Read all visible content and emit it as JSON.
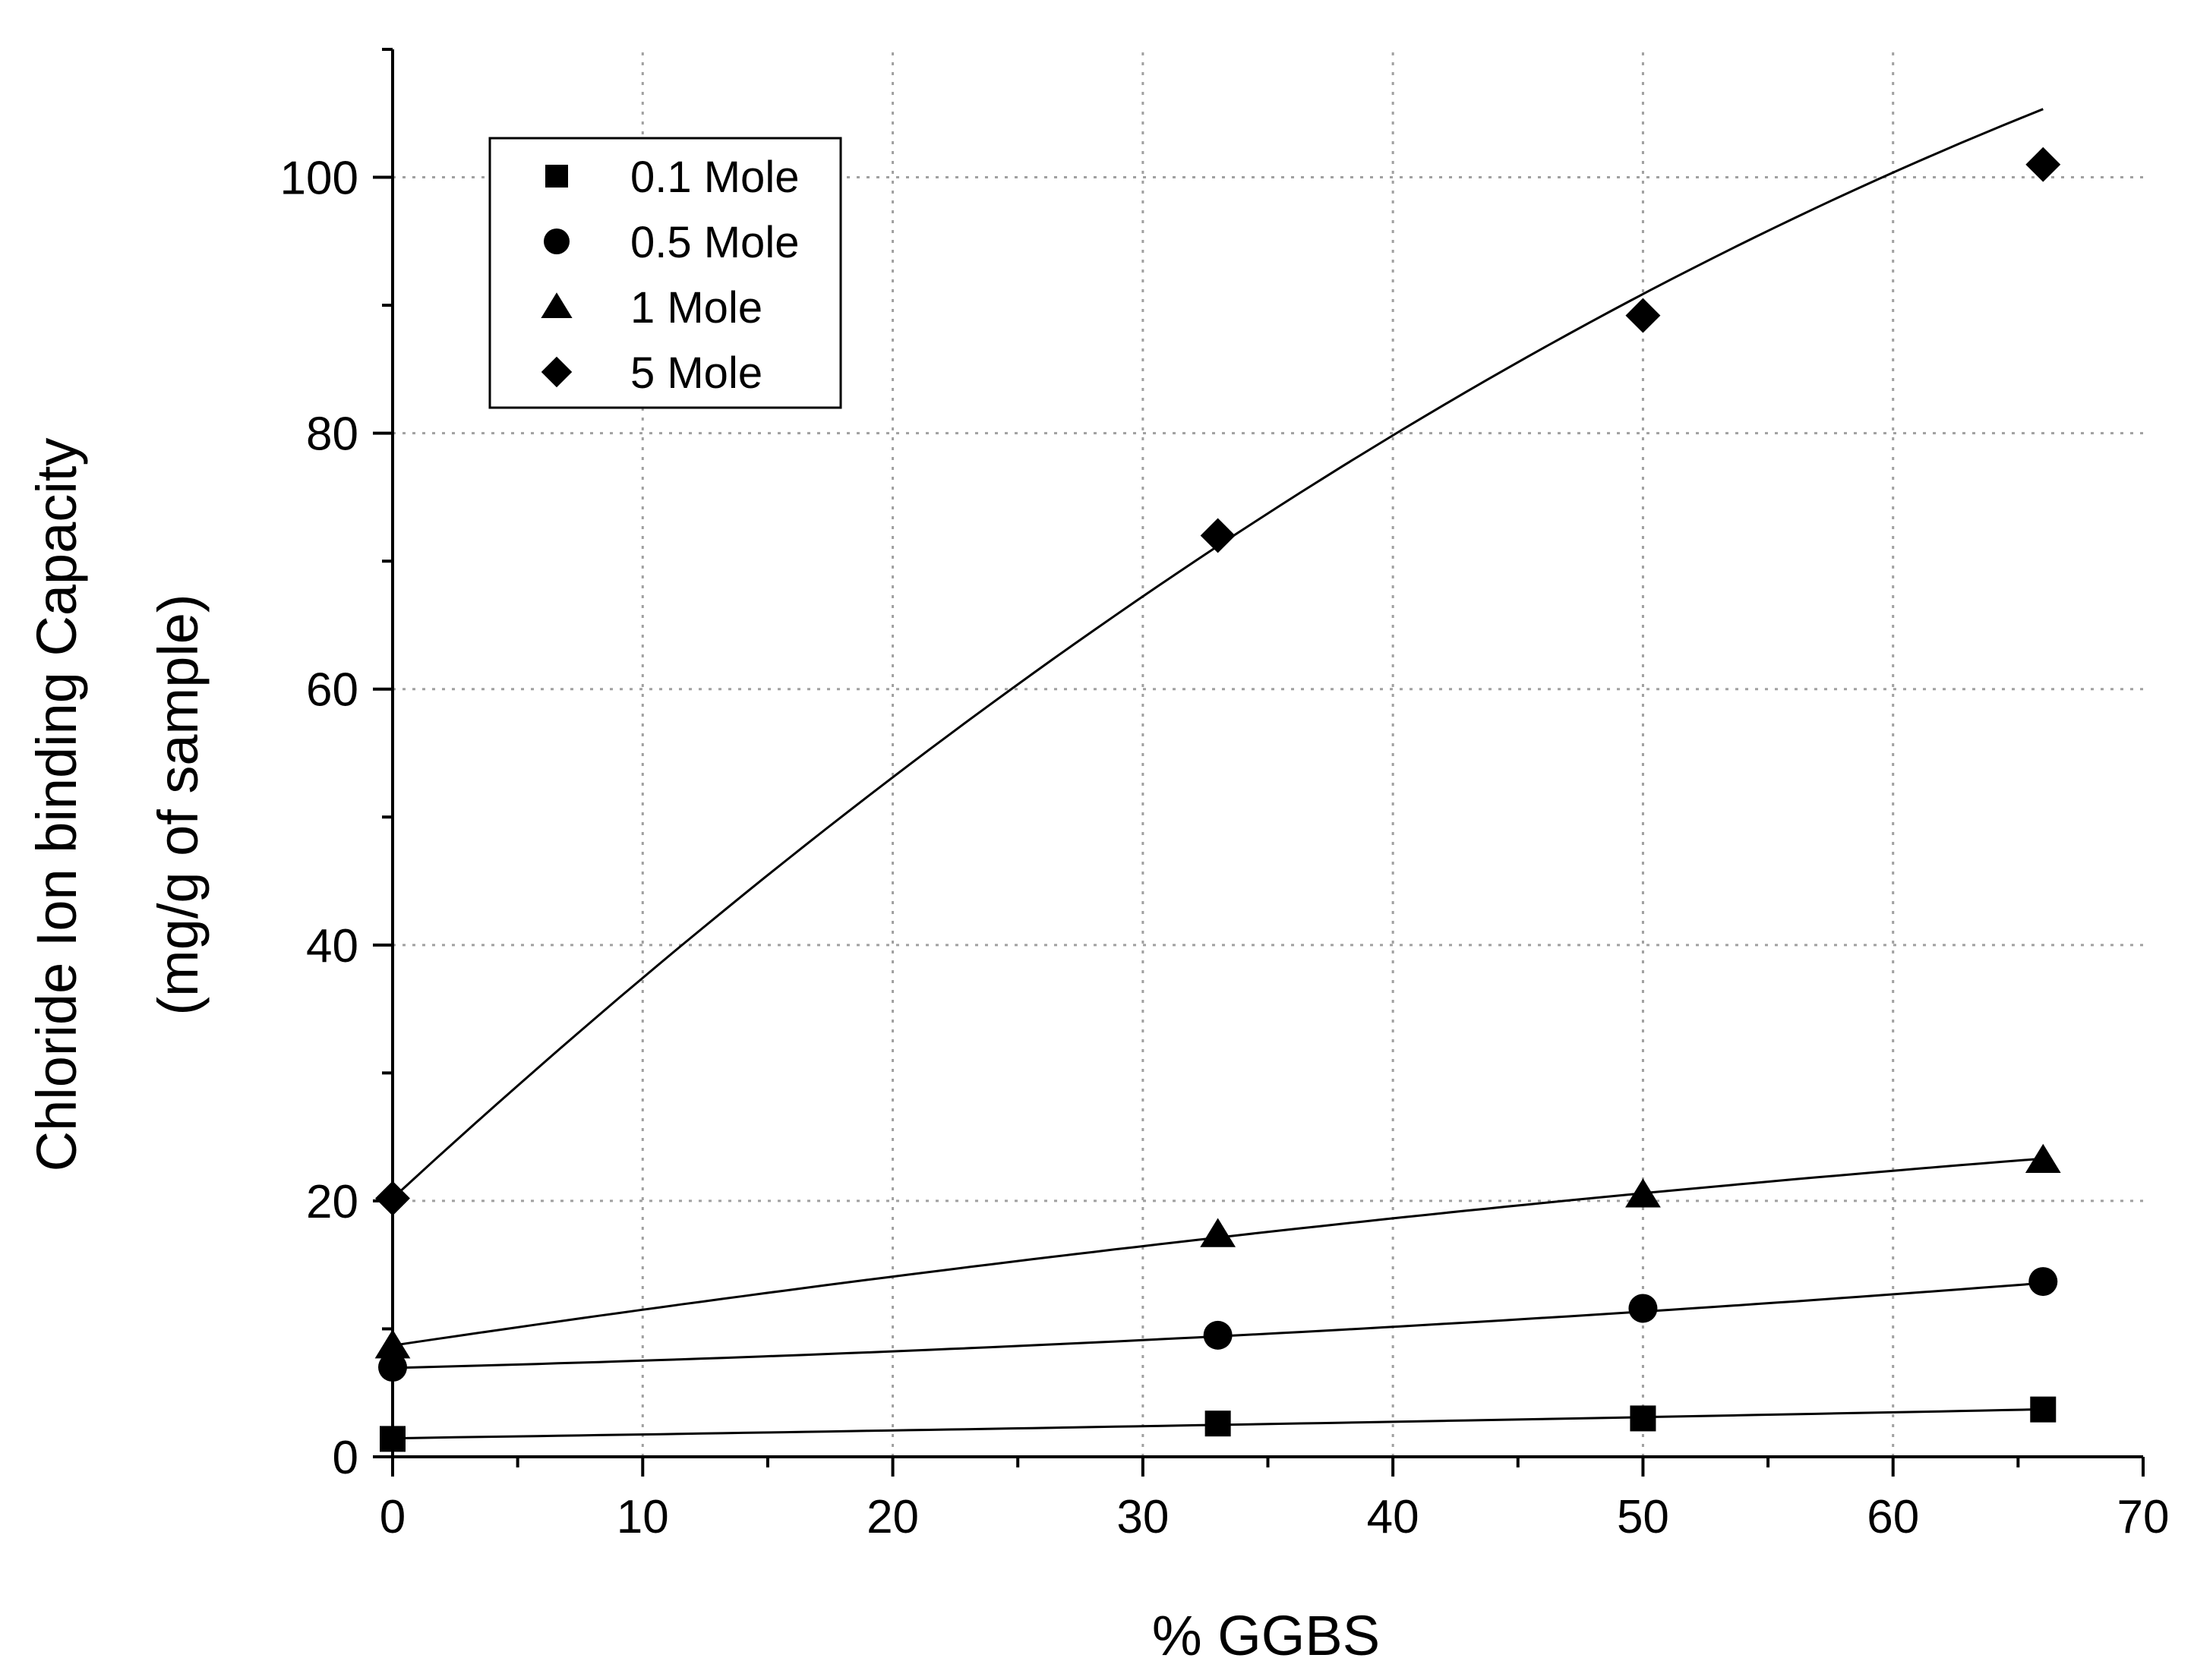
{
  "chart_data": {
    "type": "scatter",
    "title": "",
    "xlabel": "% GGBS",
    "ylabel_line1": "Chloride Ion binding Capacity",
    "ylabel_line2": "(mg/g of sample)",
    "xlim": [
      0,
      70
    ],
    "ylim": [
      0,
      110
    ],
    "x_ticks": [
      0,
      10,
      20,
      30,
      40,
      50,
      60,
      70
    ],
    "x_tick_labels": [
      "0",
      "10",
      "20",
      "30",
      "40",
      "50",
      "60",
      "70"
    ],
    "y_ticks": [
      0,
      20,
      40,
      60,
      80,
      100
    ],
    "y_tick_labels": [
      "0",
      "20",
      "40",
      "60",
      "80",
      "100"
    ],
    "grid": true,
    "legend_position": "top-left",
    "series": [
      {
        "name": "0.1 Mole",
        "marker": "square",
        "x": [
          0,
          33,
          50,
          66
        ],
        "y": [
          1.4,
          2.6,
          3.0,
          3.7
        ],
        "fit_coeffs": [
          1.45,
          0.029,
          8e-05
        ]
      },
      {
        "name": "0.5 Mole",
        "marker": "circle",
        "x": [
          0,
          33,
          50,
          66
        ],
        "y": [
          7.0,
          9.5,
          11.6,
          13.7
        ],
        "fit_coeffs": [
          6.95,
          0.049,
          0.00078
        ]
      },
      {
        "name": "1 Mole",
        "marker": "triangle",
        "x": [
          0,
          33,
          50,
          66
        ],
        "y": [
          8.7,
          17.4,
          20.5,
          23.2
        ],
        "fit_coeffs": [
          8.7,
          0.29,
          -0.00104
        ]
      },
      {
        "name": "5 Mole",
        "marker": "diamond",
        "x": [
          0,
          33,
          50,
          66
        ],
        "y": [
          20.2,
          72.0,
          89.2,
          101.0
        ],
        "fit_coeffs": [
          20.2,
          1.8,
          -0.00773
        ]
      }
    ]
  }
}
